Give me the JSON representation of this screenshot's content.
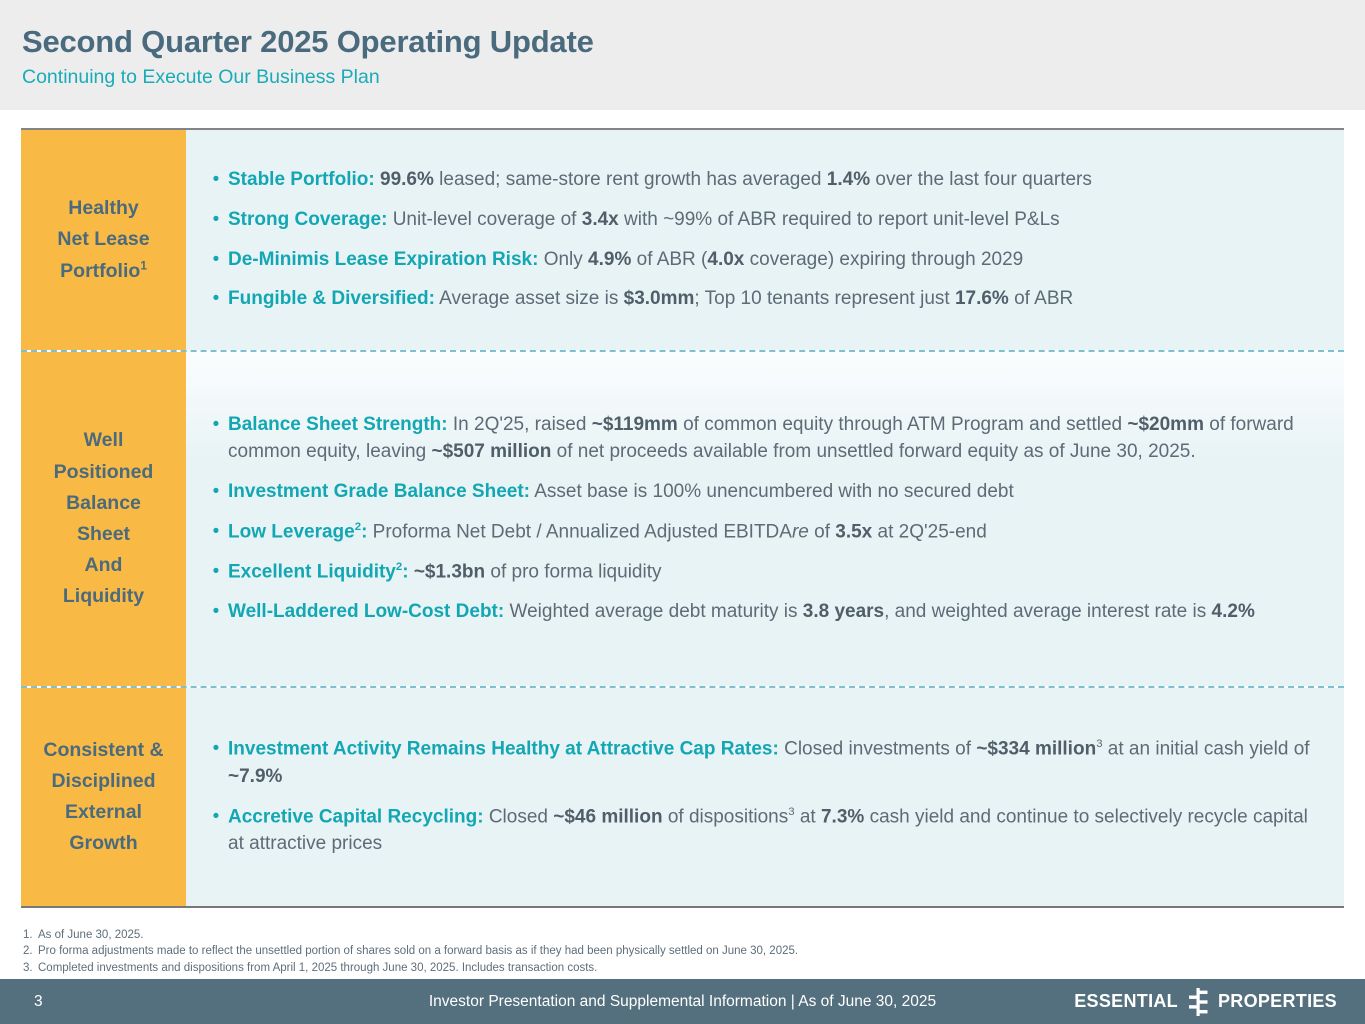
{
  "header": {
    "title": "Second Quarter 2025 Operating Update",
    "subtitle": "Continuing to Execute Our Business Plan"
  },
  "bullet_char": "•",
  "sections": [
    {
      "label_lines": [
        "Healthy",
        "Net Lease",
        "Portfolio"
      ],
      "label_sup": "1",
      "bullets": [
        {
          "segments": [
            {
              "t": "Stable Portfolio:",
              "s": "lead"
            },
            {
              "t": " 99.6%",
              "s": "b"
            },
            {
              "t": " leased; same-store rent growth has averaged ",
              "s": "n"
            },
            {
              "t": "1.4%",
              "s": "b"
            },
            {
              "t": " over the last four quarters",
              "s": "n"
            }
          ]
        },
        {
          "segments": [
            {
              "t": "Strong Coverage:",
              "s": "lead"
            },
            {
              "t": " Unit-level coverage of ",
              "s": "n"
            },
            {
              "t": "3.4x",
              "s": "b"
            },
            {
              "t": " with ~99% of ABR required to report unit-level P&Ls",
              "s": "n"
            }
          ]
        },
        {
          "segments": [
            {
              "t": "De-Minimis Lease Expiration Risk:",
              "s": "lead"
            },
            {
              "t": " Only ",
              "s": "n"
            },
            {
              "t": "4.9%",
              "s": "b"
            },
            {
              "t": " of ABR (",
              "s": "n"
            },
            {
              "t": "4.0x",
              "s": "b"
            },
            {
              "t": " coverage) expiring through 2029",
              "s": "n"
            }
          ]
        },
        {
          "segments": [
            {
              "t": "Fungible & Diversified:",
              "s": "lead"
            },
            {
              "t": " Average asset size is ",
              "s": "n"
            },
            {
              "t": "$3.0mm",
              "s": "b"
            },
            {
              "t": "; Top 10 tenants represent just ",
              "s": "n"
            },
            {
              "t": "17.6%",
              "s": "b"
            },
            {
              "t": " of ABR",
              "s": "n"
            }
          ]
        }
      ]
    },
    {
      "label_lines": [
        "Well",
        "Positioned",
        "Balance",
        "Sheet",
        "And",
        "Liquidity"
      ],
      "label_sup": null,
      "bullets": [
        {
          "segments": [
            {
              "t": "Balance Sheet Strength:",
              "s": "lead"
            },
            {
              "t": " In 2Q'25, raised ",
              "s": "n"
            },
            {
              "t": "~$119mm",
              "s": "b"
            },
            {
              "t": " of common equity through ATM Program and settled ",
              "s": "n"
            },
            {
              "t": "~$20mm",
              "s": "b"
            },
            {
              "t": " of forward common equity, leaving ",
              "s": "n"
            },
            {
              "t": "~$507 million",
              "s": "b"
            },
            {
              "t": " of net proceeds available from unsettled forward equity as of June 30, 2025.",
              "s": "n"
            }
          ]
        },
        {
          "segments": [
            {
              "t": "Investment Grade Balance Sheet:",
              "s": "lead"
            },
            {
              "t": " Asset base is 100% unencumbered with no secured debt",
              "s": "n"
            }
          ]
        },
        {
          "segments": [
            {
              "t": "Low Leverage",
              "s": "lead"
            },
            {
              "t": "2",
              "s": "leadsup"
            },
            {
              "t": ":",
              "s": "lead"
            },
            {
              "t": " Proforma Net Debt / Annualized Adjusted EBITDA",
              "s": "n"
            },
            {
              "t": "re",
              "s": "i"
            },
            {
              "t": " of ",
              "s": "n"
            },
            {
              "t": "3.5x",
              "s": "b"
            },
            {
              "t": " at 2Q'25-end",
              "s": "n"
            }
          ]
        },
        {
          "segments": [
            {
              "t": "Excellent Liquidity",
              "s": "lead"
            },
            {
              "t": "2",
              "s": "leadsup"
            },
            {
              "t": ":",
              "s": "lead"
            },
            {
              "t": " ~$1.3bn",
              "s": "b"
            },
            {
              "t": " of pro forma liquidity",
              "s": "n"
            }
          ]
        },
        {
          "segments": [
            {
              "t": "Well-Laddered Low-Cost Debt:",
              "s": "lead"
            },
            {
              "t": " Weighted average debt maturity is ",
              "s": "n"
            },
            {
              "t": "3.8 years",
              "s": "b"
            },
            {
              "t": ", and weighted average interest rate is ",
              "s": "n"
            },
            {
              "t": "4.2%",
              "s": "b"
            }
          ]
        }
      ]
    },
    {
      "label_lines": [
        "Consistent &",
        "Disciplined",
        "External",
        "Growth"
      ],
      "label_sup": null,
      "bullets": [
        {
          "segments": [
            {
              "t": "Investment Activity Remains Healthy at Attractive Cap Rates:",
              "s": "lead"
            },
            {
              "t": " Closed investments of ",
              "s": "n"
            },
            {
              "t": "~$334 million",
              "s": "b"
            },
            {
              "t": "3",
              "s": "sup"
            },
            {
              "t": " at an initial cash yield of ",
              "s": "n"
            },
            {
              "t": "~7.9%",
              "s": "b"
            }
          ]
        },
        {
          "segments": [
            {
              "t": "Accretive Capital Recycling:",
              "s": "lead"
            },
            {
              "t": " Closed ",
              "s": "n"
            },
            {
              "t": "~$46 million",
              "s": "b"
            },
            {
              "t": " of dispositions",
              "s": "n"
            },
            {
              "t": "3",
              "s": "sup"
            },
            {
              "t": " at ",
              "s": "n"
            },
            {
              "t": "7.3%",
              "s": "b"
            },
            {
              "t": " cash yield and continue to selectively recycle capital at attractive prices",
              "s": "n"
            }
          ]
        }
      ]
    }
  ],
  "footnotes": [
    {
      "num": "1.",
      "text": "As of June 30, 2025."
    },
    {
      "num": "2.",
      "text": "Pro forma adjustments made to reflect the unsettled portion of shares sold on a forward basis as if they had been physically settled on June 30, 2025."
    },
    {
      "num": "3.",
      "text": "Completed investments and dispositions from April 1, 2025 through June 30, 2025. Includes transaction costs."
    }
  ],
  "footer": {
    "page_number": "3",
    "center_text": "Investor Presentation and Supplemental Information |  As of June 30, 2025",
    "logo": {
      "left": "ESSENTIAL",
      "right": "PROPERTIES"
    }
  },
  "colors": {
    "accent_teal": "#12A7B3",
    "label_yellow": "#F9B945",
    "title_slate": "#4A6A7D",
    "body_gray": "#5C6B76",
    "footer_slate": "#54707E",
    "content_bg": "#E8F3F5",
    "header_band_bg": "#EDEDEE",
    "dashed_divider": "#7EBFD2"
  }
}
